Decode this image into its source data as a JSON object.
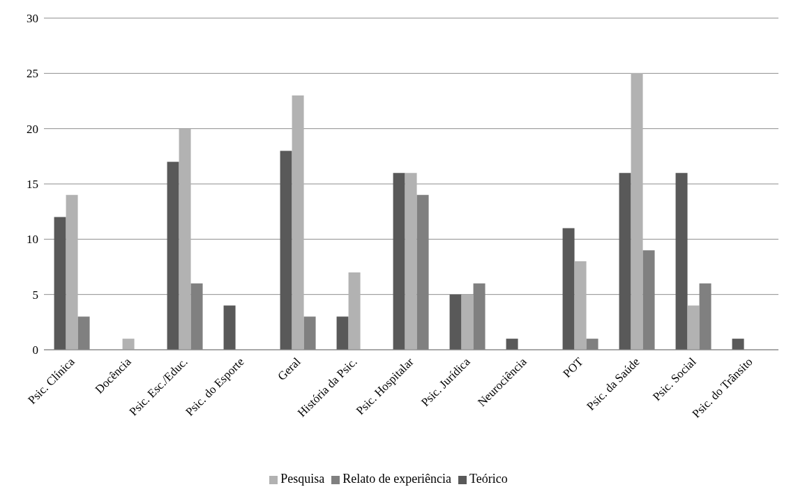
{
  "chart_data": {
    "type": "bar",
    "categories": [
      "Psic. Clínica",
      "Docência",
      "Psic. Esc./Educ.",
      "Psic. do Esporte",
      "Geral",
      "História da Psic.",
      "Psic. Hospitalar",
      "Psic. Jurídica",
      "Neurociência",
      "POT",
      "Psic. da Saúde",
      "Psic. Social",
      "Psic. do Trânsito"
    ],
    "series": [
      {
        "name": "Teórico",
        "color": "#595959",
        "values": [
          12,
          0,
          17,
          4,
          18,
          3,
          16,
          5,
          1,
          11,
          16,
          16,
          1
        ]
      },
      {
        "name": "Pesquisa",
        "color": "#b2b2b2",
        "values": [
          14,
          1,
          20,
          0,
          23,
          7,
          16,
          5,
          0,
          8,
          25,
          4,
          0
        ]
      },
      {
        "name": "Relato de experiência",
        "color": "#808080",
        "values": [
          3,
          0,
          6,
          0,
          3,
          0,
          14,
          6,
          0,
          1,
          9,
          6,
          0
        ]
      }
    ],
    "ylim": [
      0,
      30
    ],
    "yticks": [
      0,
      5,
      10,
      15,
      20,
      25,
      30
    ],
    "grid": "y",
    "legend": "bottom"
  }
}
